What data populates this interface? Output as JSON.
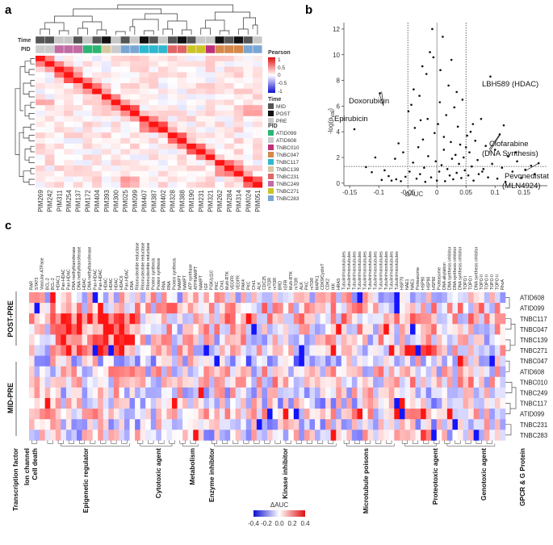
{
  "panel_labels": {
    "a": "a",
    "b": "b",
    "c": "c"
  },
  "chart_data": [
    {
      "id": "a",
      "type": "heatmap",
      "title": "",
      "samples": [
        "PIM269",
        "PIM242",
        "PIM311",
        "PIM254",
        "PIM137",
        "PIM172",
        "PIM404",
        "PIM393",
        "PIM300",
        "PIM025",
        "PIM099",
        "PIM407",
        "PIM387",
        "PIM402",
        "PIM328",
        "PIM388",
        "PIM190",
        "PIM231",
        "PIM321",
        "PIM262",
        "PIM284",
        "PIM314",
        "PIM024",
        "PIM051"
      ],
      "time_label": "Time",
      "pid_label": "PID",
      "time_track": [
        "MID",
        "MID",
        "PRE",
        "PRE",
        "MID",
        "PRE",
        "MID",
        "POST",
        "PRE",
        "MID",
        "PRE",
        "POST",
        "MID",
        "PRE",
        "MID",
        "POST",
        "MID",
        "PRE",
        "PRE",
        "POST",
        "MID",
        "POST",
        "MID",
        "PRE"
      ],
      "pid_track": [
        "ATID608",
        "ATID608",
        "TNBC249",
        "TNBC249",
        "TNBC249",
        "ATID099",
        "ATID099",
        "TNBC139",
        "ATID608",
        "TNBC283",
        "TNBC283",
        "TNBC117",
        "TNBC117",
        "TNBC117",
        "TNBC231",
        "TNBC231",
        "TNBC271",
        "TNBC271",
        "TNBC010",
        "TNBC047",
        "TNBC047",
        "TNBC047",
        "TNBC283",
        "TNBC283"
      ],
      "colorbar": {
        "title": "Pearson",
        "ticks": [
          "1",
          "0.5",
          "0",
          "-0.5",
          "-1"
        ]
      },
      "time_legend": {
        "title": "Time",
        "items": [
          {
            "label": "MID",
            "color": "#555555"
          },
          {
            "label": "POST",
            "color": "#111111"
          },
          {
            "label": "PRE",
            "color": "#c8c8c8"
          }
        ]
      },
      "pid_legend": {
        "title": "PID",
        "items": [
          {
            "label": "ATID099",
            "color": "#2bb673"
          },
          {
            "label": "ATID608",
            "color": "#cccccc"
          },
          {
            "label": "TNBC010",
            "color": "#c0307a"
          },
          {
            "label": "TNBC047",
            "color": "#d4884a"
          },
          {
            "label": "TNBC117",
            "color": "#2fb8cf"
          },
          {
            "label": "TNBC139",
            "color": "#d7c8a2"
          },
          {
            "label": "TNBC231",
            "color": "#e06666"
          },
          {
            "label": "TNBC249",
            "color": "#c26ba4"
          },
          {
            "label": "TNBC271",
            "color": "#ccc32a"
          },
          {
            "label": "TNBC283",
            "color": "#7aa6d4"
          }
        ]
      }
    },
    {
      "id": "b",
      "type": "scatter",
      "xlabel": "ΔAUC",
      "ylabel": "-log(p",
      "ylabel_sub": "val",
      "ylabel_end": ")",
      "xlim": [
        -0.16,
        0.19
      ],
      "ylim": [
        -0.2,
        12.5
      ],
      "xticks": [
        "-0.15",
        "-0.1",
        "-0.05",
        "0",
        "0.05",
        "0.1",
        "0.15"
      ],
      "xtick_values": [
        -0.15,
        -0.1,
        -0.05,
        0,
        0.05,
        0.1,
        0.15
      ],
      "yticks": [
        "0",
        "2",
        "4",
        "6",
        "8",
        "10",
        "12"
      ],
      "ytick_values": [
        0,
        2,
        4,
        6,
        8,
        10,
        12
      ],
      "vlines": [
        -0.05,
        0,
        0.05
      ],
      "hline": 1.3,
      "points": [
        [
          -0.142,
          4.2
        ],
        [
          -0.098,
          7.0
        ],
        [
          -0.122,
          1.25
        ],
        [
          -0.112,
          0.85
        ],
        [
          -0.09,
          1.0
        ],
        [
          -0.083,
          0.55
        ],
        [
          -0.078,
          0.2
        ],
        [
          -0.072,
          1.9
        ],
        [
          -0.066,
          3.1
        ],
        [
          -0.058,
          2.4
        ],
        [
          -0.054,
          0.5
        ],
        [
          -0.049,
          5.6
        ],
        [
          -0.047,
          0.9
        ],
        [
          -0.044,
          6.1
        ],
        [
          -0.041,
          1.6
        ],
        [
          -0.038,
          4.3
        ],
        [
          -0.035,
          0.35
        ],
        [
          -0.032,
          2.8
        ],
        [
          -0.029,
          0.7
        ],
        [
          -0.025,
          9.1
        ],
        [
          -0.024,
          3.4
        ],
        [
          -0.022,
          1.2
        ],
        [
          -0.02,
          0.1
        ],
        [
          -0.018,
          8.5
        ],
        [
          -0.015,
          2.1
        ],
        [
          -0.012,
          10.2
        ],
        [
          -0.01,
          0.45
        ],
        [
          -0.008,
          12.0
        ],
        [
          -0.006,
          9.8
        ],
        [
          -0.004,
          3.9
        ],
        [
          -0.002,
          1.7
        ],
        [
          0.0,
          0.2
        ],
        [
          0.002,
          4.6
        ],
        [
          0.004,
          0.9
        ],
        [
          0.006,
          8.8
        ],
        [
          0.008,
          1.4
        ],
        [
          0.01,
          11.4
        ],
        [
          0.012,
          2.6
        ],
        [
          0.014,
          0.15
        ],
        [
          0.016,
          5.3
        ],
        [
          0.018,
          1.1
        ],
        [
          0.02,
          7.6
        ],
        [
          0.022,
          0.6
        ],
        [
          0.024,
          3.2
        ],
        [
          0.026,
          1.9
        ],
        [
          0.028,
          0.3
        ],
        [
          0.03,
          5.9
        ],
        [
          0.032,
          2.2
        ],
        [
          0.034,
          0.8
        ],
        [
          0.036,
          4.4
        ],
        [
          0.038,
          1.5
        ],
        [
          0.04,
          3.0
        ],
        [
          0.042,
          0.4
        ],
        [
          0.044,
          6.5
        ],
        [
          0.046,
          2.0
        ],
        [
          0.048,
          1.0
        ],
        [
          0.052,
          3.7
        ],
        [
          0.054,
          0.6
        ],
        [
          0.056,
          2.4
        ],
        [
          0.058,
          4.0
        ],
        [
          0.06,
          1.3
        ],
        [
          0.063,
          0.2
        ],
        [
          0.066,
          3.3
        ],
        [
          0.07,
          1.8
        ],
        [
          0.072,
          0.7
        ],
        [
          0.076,
          5.0
        ],
        [
          0.08,
          1.1
        ],
        [
          0.084,
          2.9
        ],
        [
          0.088,
          0.45
        ],
        [
          0.092,
          8.3
        ],
        [
          0.095,
          1.5
        ],
        [
          0.1,
          2.6
        ],
        [
          0.104,
          0.35
        ],
        [
          0.108,
          3.8
        ],
        [
          0.112,
          1.2
        ],
        [
          0.118,
          0.1
        ],
        [
          0.122,
          2.1
        ],
        [
          0.13,
          0.9
        ],
        [
          0.138,
          1.7
        ],
        [
          0.145,
          0.4
        ],
        [
          0.152,
          1.05
        ],
        [
          0.162,
          1.35
        ],
        [
          0.175,
          1.55
        ],
        [
          -0.062,
          0.15
        ],
        [
          -0.07,
          0.3
        ],
        [
          -0.03,
          6.8
        ],
        [
          -0.016,
          5.0
        ],
        [
          0.005,
          6.3
        ],
        [
          0.025,
          9.6
        ],
        [
          -0.04,
          7.3
        ],
        [
          0.012,
          3.6
        ],
        [
          -0.028,
          4.9
        ],
        [
          0.034,
          7.1
        ],
        [
          0.05,
          2.8
        ],
        [
          0.062,
          4.6
        ],
        [
          -0.095,
          0.25
        ],
        [
          0.078,
          0.9
        ],
        [
          -0.106,
          2.0
        ],
        [
          0.115,
          4.5
        ],
        [
          0.135,
          2.4
        ],
        [
          0.168,
          0.7
        ]
      ],
      "annotations": [
        {
          "label": "Doxorubicin",
          "x": -0.098,
          "y": 7.0
        },
        {
          "label": "Epirubicin",
          "x": -0.142,
          "y": 4.2
        },
        {
          "label": "LBH589 (HDAC)",
          "x": 0.092,
          "y": 8.3
        },
        {
          "label": "Clofarabine",
          "x": 0.108,
          "y": 3.8
        },
        {
          "label": "(DNA Synthesis)",
          "x": 0.108,
          "y": 3.8
        },
        {
          "label": "Pevonedistat",
          "x": 0.175,
          "y": 1.55
        },
        {
          "label": "(MLN4924)",
          "x": 0.175,
          "y": 1.55
        }
      ]
    },
    {
      "id": "c",
      "type": "heatmap",
      "group_labels": [
        "POST-PRE",
        "MID-PRE"
      ],
      "rows": [
        "ATID608",
        "ATID099",
        "TNBC117",
        "TNBC047",
        "TNBC139",
        "TNBC271",
        "TNBC047",
        "ATID608",
        "TNBC010",
        "TNBC249",
        "TNBC117",
        "ATID099",
        "TNBC231",
        "TNBC283"
      ],
      "columns": [
        "RAR",
        "STAT3",
        "Vascular-ATPase",
        "BCL-2",
        "BCL-2",
        "HDAC1",
        "Pan-HDAC",
        "Pan-HDAC",
        "DNA methyltransferase",
        "DNA methyltransferase",
        "HDAC",
        "DNA methyltransferase",
        "Pan-HDAC",
        "Pan-HDAC",
        "HDAC",
        "HDAC",
        "HDAC",
        "HDAC6",
        "Pan-HDAC",
        "DNA",
        "Ribonucleotide reductase",
        "Ribonucleotide reductase",
        "Ribonucleotide reductase",
        "Protein synthesis",
        "Protein synthesis",
        "RNA",
        "RNA",
        "Protein synthesis",
        "NAMPT",
        "NAMPT",
        "ATP synthase",
        "ATP/NAMPT",
        "NAMPT",
        "IGF",
        "PI3K/p110",
        "PKC",
        "Chk1",
        "Multi-RTK",
        "VEGFR",
        "VEGFR",
        "PAK4",
        "PKC",
        "Chk1",
        "ALK",
        "CDC25",
        "mTOR",
        "mTOR",
        "BRD",
        "IGFR",
        "Multi-RTK",
        "mTOR",
        "ALK",
        "PKC",
        "mTOR",
        "MAPK1",
        "CDK9/CyclinT",
        "CDK2",
        "IKK",
        "HRAS",
        "Tubulin/microtubules",
        "Tubulin/microtubules",
        "Tubulin/microtubules",
        "Tubulin/microtubules",
        "Tubulin/microtubules",
        "Tubulin/microtubules",
        "Tubulin/microtubules",
        "Tubulin/microtubules",
        "Tubulin/microtubules",
        "Tubulin/microtubules",
        "Tubulin/microtubules",
        "HSP70",
        "NAE1",
        "NAE1",
        "Proteasome",
        "HSP90",
        "HSP90",
        "HSP90",
        "Proteasome",
        "DNA alkylation",
        "DNA synthesis inhibitor",
        "DNA synthesis inhibitor",
        "DNA synthesis inhibitor",
        "TOPO I",
        "TOPO I",
        "DNA synthesis inhibitor",
        "TOPO II",
        "TOPO II",
        "TOPO II",
        "TOPO II",
        "RhoA"
      ],
      "categories": [
        {
          "label": "Transcription factor",
          "start": 0,
          "end": 1
        },
        {
          "label": "Ion channel",
          "start": 2,
          "end": 2
        },
        {
          "label": "Cell death",
          "start": 3,
          "end": 4
        },
        {
          "label": "Epigenetic regulator",
          "start": 5,
          "end": 19
        },
        {
          "label": "Cytotoxic agent",
          "start": 20,
          "end": 27
        },
        {
          "label": "Metabolism",
          "start": 28,
          "end": 32
        },
        {
          "label": "Enzyme inhibitor",
          "start": 33,
          "end": 33
        },
        {
          "label": "Kinase inhibitor",
          "start": 34,
          "end": 58
        },
        {
          "label": "Microtubule poisons",
          "start": 59,
          "end": 69
        },
        {
          "label": "Proteotoxic agent",
          "start": 70,
          "end": 77
        },
        {
          "label": "Genotoxic agent",
          "start": 78,
          "end": 88
        },
        {
          "label": "GPCR & G Protein",
          "start": 89,
          "end": 89
        }
      ],
      "colorbar": {
        "title": "ΔAUC",
        "ticks": [
          "-0.4",
          "-0.2",
          "0.0",
          "0.2",
          "0.4"
        ]
      }
    }
  ]
}
